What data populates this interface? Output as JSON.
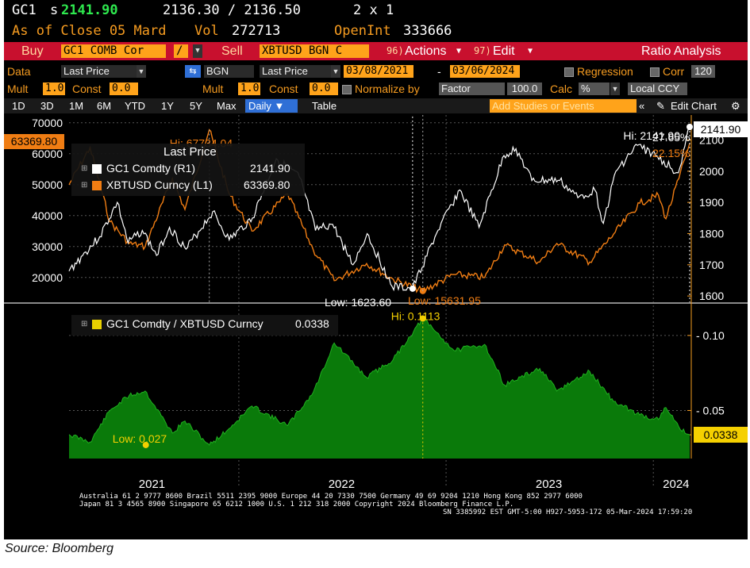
{
  "header": {
    "ticker": "GC1",
    "price_prefix": "s",
    "price": "2141.90",
    "bid_ask": "2136.30 / 2136.50",
    "size": "2 x 1",
    "as_of": "As of Close 05 Mard",
    "vol_label": "Vol",
    "vol": "272713",
    "openint_label": "OpenInt",
    "openint": "333666"
  },
  "actionbar": {
    "buy_label": "Buy",
    "buy_security": "GC1 COMB Cor",
    "op": "/",
    "sell_label": "Sell",
    "sell_security": "XBTUSD BGN C",
    "actions_num": "96)",
    "actions_label": "Actions",
    "edit_num": "97)",
    "edit_label": "Edit",
    "title": "Ratio Analysis"
  },
  "datarow": {
    "data_label": "Data",
    "data_value": "Last Price",
    "bgn": "BGN",
    "last_price2": "Last Price",
    "start_date": "03/08/2021",
    "dash": "-",
    "end_date": "03/06/2024",
    "regression": "Regression",
    "corr_label": "Corr",
    "corr_value": "120"
  },
  "multrow": {
    "mult_label": "Mult",
    "mult_value": "1.0",
    "const_label": "Const",
    "const_value": "0.0",
    "mult2_label": "Mult",
    "mult2_value": "1.0",
    "const2_label": "Const",
    "const2_value": "0.0",
    "normalize_label": "Normalize by",
    "factor": "Factor",
    "factor_value": "100.0",
    "calc_label": "Calc",
    "calc_value": "%",
    "local_ccy": "Local CCY"
  },
  "toolbar": {
    "ranges": [
      "1D",
      "3D",
      "1M",
      "6M",
      "YTD",
      "1Y",
      "5Y",
      "Max"
    ],
    "daily": "Daily",
    "table": "Table",
    "add_studies": "Add Studies or Events",
    "edit_chart": "Edit Chart"
  },
  "colors": {
    "gold": "#ffffff",
    "btc": "#f07d13",
    "ratio_fill": "#0a7a0a",
    "ratio_line": "#e8e000",
    "accent": "#ffa31a",
    "bar_red": "#c8102e"
  },
  "chart_data": [
    {
      "type": "line",
      "legend_title": "Last Price",
      "series": [
        {
          "name": "GC1 Comdty (R1)",
          "axis": "right",
          "last": "2141.90",
          "points": [
            [
              "2021-03-08",
              1680
            ],
            [
              "2021-04-01",
              1730
            ],
            [
              "2021-05-01",
              1790
            ],
            [
              "2021-06-01",
              1900
            ],
            [
              "2021-06-20",
              1770
            ],
            [
              "2021-07-15",
              1810
            ],
            [
              "2021-08-09",
              1730
            ],
            [
              "2021-09-01",
              1820
            ],
            [
              "2021-09-30",
              1750
            ],
            [
              "2021-11-16",
              1870
            ],
            [
              "2021-12-15",
              1780
            ],
            [
              "2022-01-25",
              1850
            ],
            [
              "2022-03-08",
              2040
            ],
            [
              "2022-04-18",
              1980
            ],
            [
              "2022-05-16",
              1810
            ],
            [
              "2022-06-15",
              1830
            ],
            [
              "2022-07-21",
              1700
            ],
            [
              "2022-08-15",
              1800
            ],
            [
              "2022-09-28",
              1630
            ],
            [
              "2022-11-03",
              1623.6
            ],
            [
              "2022-12-15",
              1800
            ],
            [
              "2023-01-25",
              1940
            ],
            [
              "2023-02-28",
              1820
            ],
            [
              "2023-04-13",
              2050
            ],
            [
              "2023-05-04",
              2072
            ],
            [
              "2023-06-01",
              1970
            ],
            [
              "2023-07-20",
              1970
            ],
            [
              "2023-08-21",
              1915
            ],
            [
              "2023-09-20",
              1940
            ],
            [
              "2023-10-05",
              1833
            ],
            [
              "2023-10-27",
              2000
            ],
            [
              "2023-12-04",
              2083
            ],
            [
              "2024-01-05",
              2050
            ],
            [
              "2024-02-14",
              1995
            ],
            [
              "2024-03-05",
              2141.9
            ]
          ]
        },
        {
          "name": "XBTUSD Curncy (L1)",
          "axis": "left",
          "last": "63369.80",
          "points": [
            [
              "2021-03-08",
              50000
            ],
            [
              "2021-04-14",
              62000
            ],
            [
              "2021-05-19",
              38000
            ],
            [
              "2021-06-22",
              31000
            ],
            [
              "2021-07-20",
              30000
            ],
            [
              "2021-09-06",
              52000
            ],
            [
              "2021-09-28",
              42000
            ],
            [
              "2021-11-10",
              67734.04
            ],
            [
              "2021-12-15",
              47000
            ],
            [
              "2022-01-24",
              35000
            ],
            [
              "2022-03-28",
              47000
            ],
            [
              "2022-05-12",
              29000
            ],
            [
              "2022-06-18",
              19000
            ],
            [
              "2022-08-14",
              24500
            ],
            [
              "2022-09-30",
              19400
            ],
            [
              "2022-11-21",
              15631.95
            ],
            [
              "2023-01-15",
              21000
            ],
            [
              "2023-03-10",
              20000
            ],
            [
              "2023-04-14",
              30500
            ],
            [
              "2023-06-15",
              25000
            ],
            [
              "2023-07-15",
              31000
            ],
            [
              "2023-09-11",
              25000
            ],
            [
              "2023-10-23",
              34000
            ],
            [
              "2023-12-08",
              44000
            ],
            [
              "2024-01-10",
              46600
            ],
            [
              "2024-01-23",
              39000
            ],
            [
              "2024-02-15",
              52000
            ],
            [
              "2024-03-05",
              63369.8
            ]
          ]
        }
      ],
      "left_axis": {
        "ticks": [
          20000,
          30000,
          40000,
          50000,
          60000,
          70000
        ],
        "range": [
          12000,
          72500
        ]
      },
      "right_axis": {
        "ticks": [
          1600,
          1700,
          1800,
          1900,
          2000,
          2100
        ],
        "range": [
          1580,
          2180
        ]
      },
      "annotations": {
        "btc_hi": "Hi: 67734.04",
        "gold_hi": "Hi: 2141.90",
        "gold_low": "Low: 1623.60",
        "btc_low": "Low: 15631.95",
        "gold_pct": "27.65%",
        "btc_pct": "22.15%"
      }
    },
    {
      "type": "area",
      "legend": "GC1 Comdty / XBTUSD Curncy",
      "last": "0.0338",
      "points": [
        [
          "2021-03-08",
          0.034
        ],
        [
          "2021-04-14",
          0.029
        ],
        [
          "2021-05-19",
          0.05
        ],
        [
          "2021-06-22",
          0.06
        ],
        [
          "2021-07-20",
          0.063
        ],
        [
          "2021-09-06",
          0.035
        ],
        [
          "2021-09-28",
          0.043
        ],
        [
          "2021-11-10",
          0.027
        ],
        [
          "2021-12-15",
          0.038
        ],
        [
          "2022-01-24",
          0.053
        ],
        [
          "2022-03-28",
          0.04
        ],
        [
          "2022-05-12",
          0.062
        ],
        [
          "2022-06-18",
          0.095
        ],
        [
          "2022-08-14",
          0.072
        ],
        [
          "2022-09-30",
          0.084
        ],
        [
          "2022-11-21",
          0.1113
        ],
        [
          "2023-01-15",
          0.09
        ],
        [
          "2023-03-10",
          0.094
        ],
        [
          "2023-04-14",
          0.067
        ],
        [
          "2023-06-15",
          0.078
        ],
        [
          "2023-07-15",
          0.063
        ],
        [
          "2023-09-11",
          0.076
        ],
        [
          "2023-10-23",
          0.056
        ],
        [
          "2023-12-08",
          0.047
        ],
        [
          "2024-01-10",
          0.044
        ],
        [
          "2024-01-23",
          0.052
        ],
        [
          "2024-02-15",
          0.039
        ],
        [
          "2024-03-05",
          0.0338
        ]
      ],
      "right_axis": {
        "ticks": [
          0.05,
          0.1
        ],
        "range": [
          0.018,
          0.12
        ]
      },
      "annotations": {
        "hi": "Hi: 0.1113",
        "low": "Low: 0.027"
      }
    }
  ],
  "x_axis": {
    "labels": [
      "2021",
      "2022",
      "2023",
      "2024"
    ],
    "start": "2021-03-08",
    "end": "2024-03-05"
  },
  "footer": {
    "line1": "Australia 61 2 9777 8600  Brazil 5511 2395 9000  Europe 44 20 7330 7500  Germany 49 69 9204 1210  Hong Kong 852 2977 6000",
    "line2": "Japan 81 3 4565 8900        Singapore 65 6212 1000        U.S. 1 212 318 2000        Copyright 2024 Bloomberg Finance L.P.",
    "line3": "SN 3385992 EST  GMT-5:00 H927-5953-172 05-Mar-2024 17:59:20"
  },
  "source": "Source: Bloomberg"
}
